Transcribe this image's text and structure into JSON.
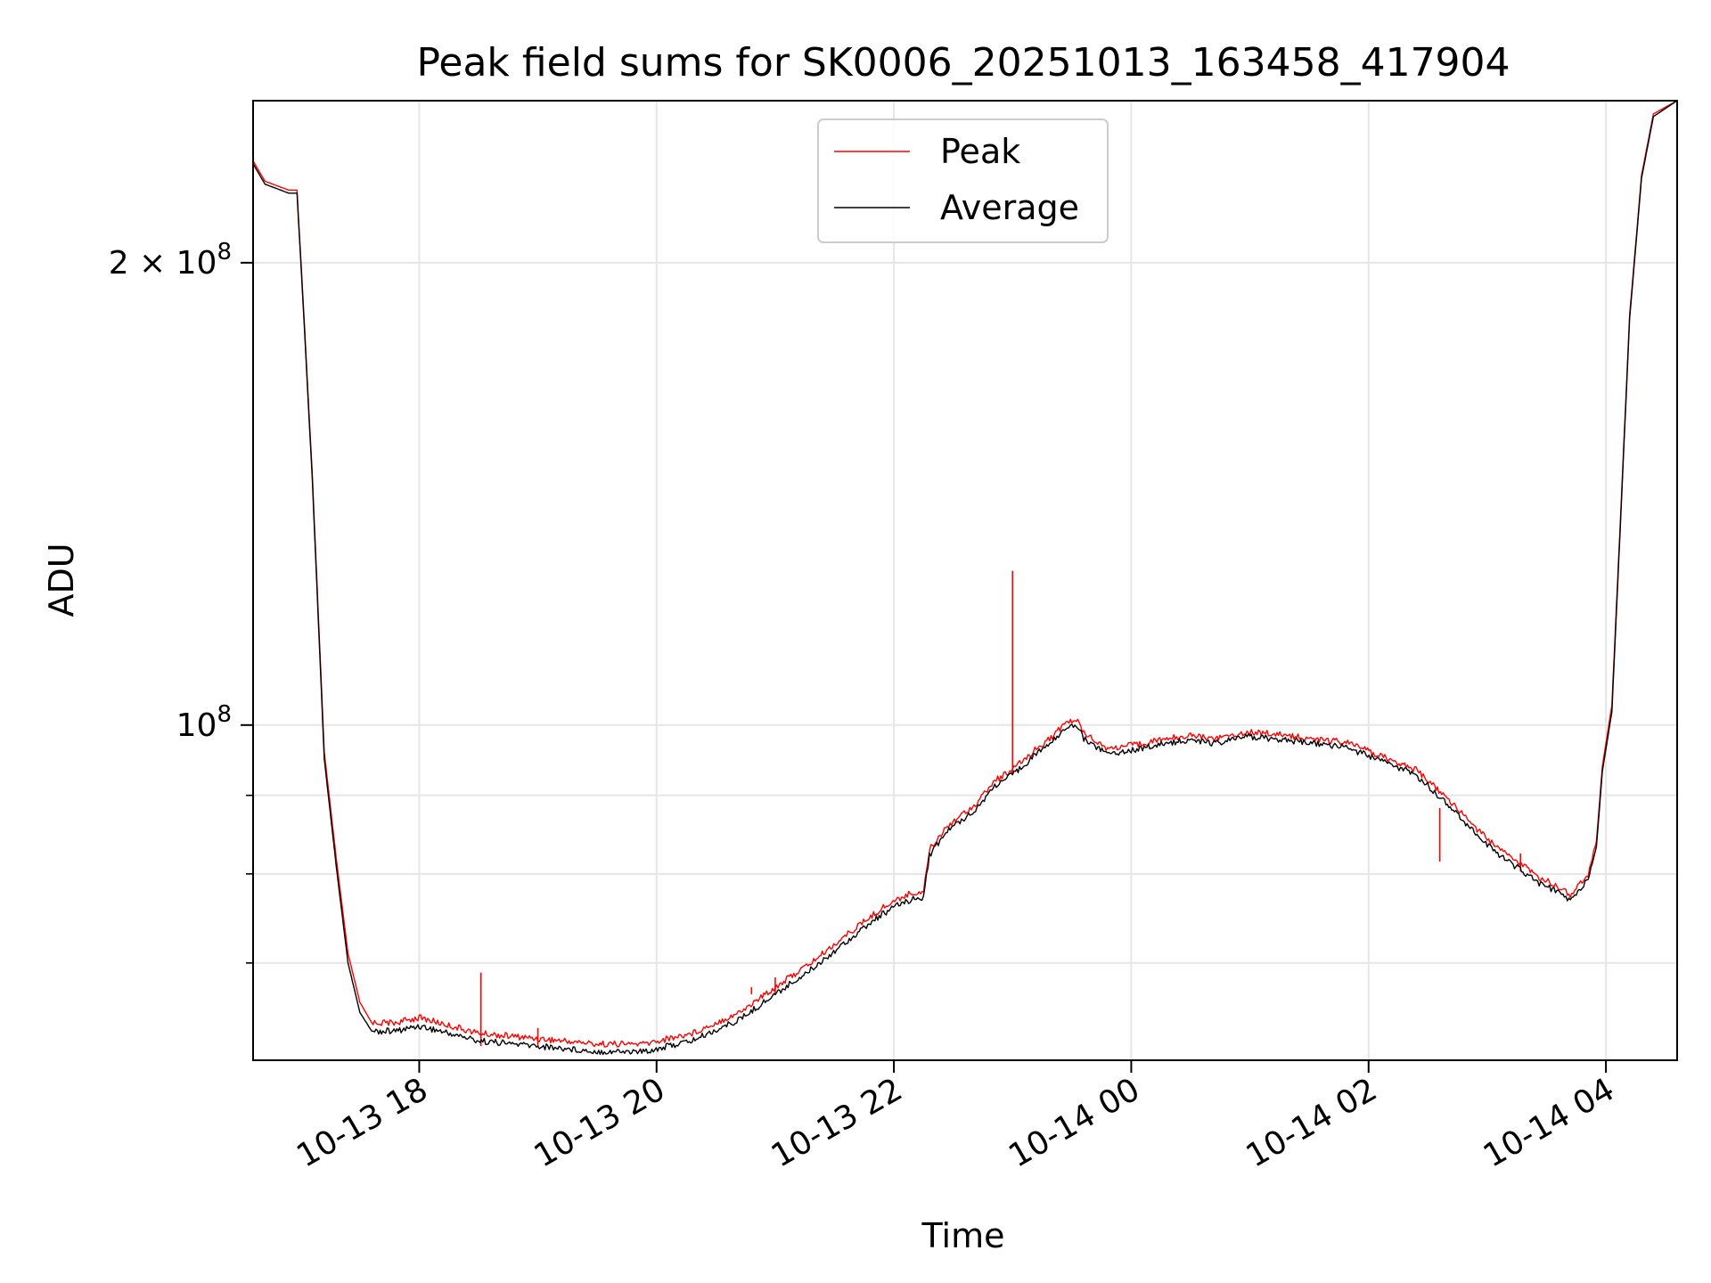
{
  "chart_data": {
    "type": "line",
    "title": "Peak field sums for SK0006_20251013_163458_417904",
    "xlabel": "Time",
    "ylabel": "ADU",
    "yscale": "log",
    "grid": true,
    "legend_position": "top-center",
    "x_hours_range": [
      16.6,
      28.6
    ],
    "ylim": [
      60500000,
      255000000
    ],
    "xticks": [
      {
        "hour": 18,
        "label": "10-13 18"
      },
      {
        "hour": 20,
        "label": "10-13 20"
      },
      {
        "hour": 22,
        "label": "10-13 22"
      },
      {
        "hour": 24,
        "label": "10-14 00"
      },
      {
        "hour": 26,
        "label": "10-14 02"
      },
      {
        "hour": 28,
        "label": "10-14 04"
      }
    ],
    "yticks_major": [
      {
        "value": 100000000,
        "base": "10",
        "exp": "8"
      },
      {
        "value": 200000000,
        "base": "2 × 10",
        "exp": "8"
      }
    ],
    "yticks_minor": [
      70000000,
      80000000,
      90000000
    ],
    "series": [
      {
        "name": "Peak",
        "color": "#ff0000",
        "x": [
          16.6,
          16.7,
          16.9,
          16.97,
          17.02,
          17.1,
          17.15,
          17.2,
          17.3,
          17.4,
          17.5,
          17.6,
          17.8,
          18.0,
          18.5,
          19.0,
          19.5,
          19.9,
          20.3,
          20.7,
          21.0,
          21.3,
          21.6,
          21.9,
          22.1,
          22.25,
          22.3,
          22.45,
          22.7,
          22.85,
          23.0,
          23.2,
          23.35,
          23.45,
          23.55,
          23.6,
          23.8,
          24.0,
          24.3,
          24.5,
          24.7,
          25.0,
          25.3,
          25.5,
          25.8,
          26.1,
          26.4,
          26.7,
          26.95,
          27.1,
          27.3,
          27.45,
          27.6,
          27.7,
          27.85,
          27.92,
          27.97,
          28.05,
          28.12,
          28.2,
          28.3,
          28.4,
          28.6
        ],
        "y": [
          233000000,
          226000000,
          223000000,
          223000000,
          190000000,
          145000000,
          118000000,
          96000000,
          82000000,
          71000000,
          66000000,
          64000000,
          64000000,
          64500000,
          63000000,
          62500000,
          62000000,
          62000000,
          63000000,
          65000000,
          67500000,
          70000000,
          73000000,
          76000000,
          77500000,
          78000000,
          83000000,
          86000000,
          89000000,
          92000000,
          93500000,
          96500000,
          98500000,
          100500000,
          100500000,
          99000000,
          96500000,
          97000000,
          98000000,
          98500000,
          98000000,
          99000000,
          98500000,
          98000000,
          97500000,
          95500000,
          93500000,
          89000000,
          85000000,
          83000000,
          81000000,
          79500000,
          78500000,
          77500000,
          80000000,
          84000000,
          94000000,
          103000000,
          135000000,
          185000000,
          228000000,
          250000000,
          255000000
        ],
        "spikes": [
          {
            "x": 18.52,
            "y": 69000000
          },
          {
            "x": 19.0,
            "y": 63500000
          },
          {
            "x": 20.8,
            "y": 67500000
          },
          {
            "x": 21.0,
            "y": 68500000
          },
          {
            "x": 23.0,
            "y": 126000000
          },
          {
            "x": 26.6,
            "y": 81500000
          },
          {
            "x": 27.28,
            "y": 82500000
          }
        ]
      },
      {
        "name": "Average",
        "color": "#000000",
        "x": [
          16.6,
          16.7,
          16.9,
          16.97,
          17.02,
          17.1,
          17.15,
          17.2,
          17.3,
          17.4,
          17.5,
          17.6,
          17.8,
          18.0,
          18.5,
          19.0,
          19.5,
          19.9,
          20.3,
          20.7,
          21.0,
          21.3,
          21.6,
          21.9,
          22.1,
          22.25,
          22.3,
          22.45,
          22.7,
          22.85,
          23.0,
          23.2,
          23.35,
          23.45,
          23.55,
          23.6,
          23.8,
          24.0,
          24.3,
          24.5,
          24.7,
          25.0,
          25.3,
          25.5,
          25.8,
          26.1,
          26.4,
          26.7,
          26.95,
          27.1,
          27.3,
          27.45,
          27.6,
          27.7,
          27.85,
          27.92,
          27.97,
          28.05,
          28.12,
          28.2,
          28.3,
          28.4,
          28.6
        ],
        "y": [
          232000000,
          225000000,
          222000000,
          222000000,
          189000000,
          144000000,
          117000000,
          95000000,
          81000000,
          70000000,
          65000000,
          63200000,
          63200000,
          63700000,
          62300000,
          61800000,
          61300000,
          61300000,
          62300000,
          64300000,
          66800000,
          69300000,
          72300000,
          75300000,
          76800000,
          77300000,
          82300000,
          85300000,
          88300000,
          91300000,
          92800000,
          95800000,
          97800000,
          99800000,
          99800000,
          98000000,
          95800000,
          96300000,
          97300000,
          97800000,
          97300000,
          98300000,
          97800000,
          97300000,
          96800000,
          94800000,
          92800000,
          88300000,
          84300000,
          82300000,
          80300000,
          78800000,
          77800000,
          76800000,
          79300000,
          83300000,
          93300000,
          102000000,
          134000000,
          184000000,
          227000000,
          249000000,
          255000000
        ]
      }
    ]
  }
}
